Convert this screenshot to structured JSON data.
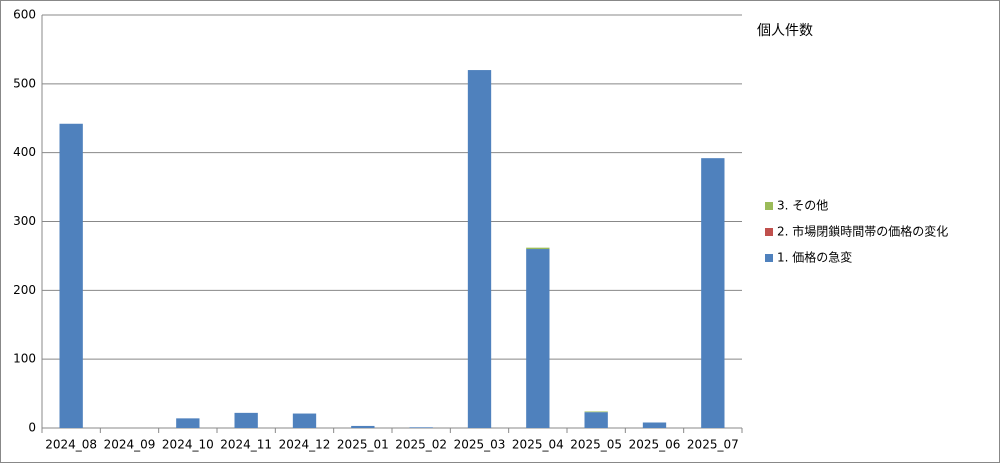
{
  "chart_data": {
    "type": "bar",
    "stacked": true,
    "title": "個人件数",
    "categories": [
      "2024_08",
      "2024_09",
      "2024_10",
      "2024_11",
      "2024_12",
      "2025_01",
      "2025_02",
      "2025_03",
      "2025_04",
      "2025_05",
      "2025_06",
      "2025_07"
    ],
    "series": [
      {
        "name": "1. 価格の急変",
        "color": "#4f81bd",
        "values": [
          442,
          0,
          14,
          22,
          21,
          3,
          1,
          520,
          260,
          23,
          8,
          392
        ]
      },
      {
        "name": "2. 市場閉鎖時間帯の価格の変化",
        "color": "#c0504d",
        "values": [
          0,
          0,
          0,
          0,
          0,
          0,
          0,
          0,
          0,
          0,
          0,
          0
        ]
      },
      {
        "name": "3. その他",
        "color": "#9bbb59",
        "values": [
          0,
          0,
          0,
          0,
          0,
          0,
          0,
          0,
          2,
          1,
          0,
          0
        ]
      }
    ],
    "ylim": [
      0,
      600
    ],
    "yticks": [
      0,
      100,
      200,
      300,
      400,
      500,
      600
    ],
    "grid": true,
    "legend": "right"
  }
}
